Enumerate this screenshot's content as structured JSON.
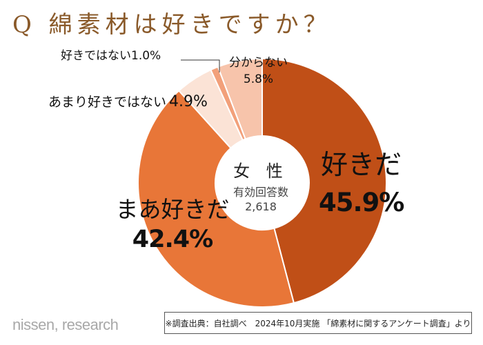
{
  "title": "Q 綿素材は好きですか？",
  "chart_data": {
    "type": "pie",
    "categories": [
      "好きだ",
      "まあ好きだ",
      "あまり好きではない",
      "好きではない",
      "分からない"
    ],
    "values": [
      45.9,
      42.4,
      4.9,
      1.0,
      5.8
    ],
    "value_labels": [
      "45.9%",
      "42.4%",
      "4.9%",
      "1.0%",
      "5.8%"
    ],
    "colors": [
      "#c04f17",
      "#e87638",
      "#fbe3d6",
      "#f2a07a",
      "#f7c4ab"
    ],
    "center_title": "女 性",
    "center_subtitle": "有効回答数",
    "center_value": "2,618",
    "donut": true
  },
  "footer": {
    "logo": "nissen, research",
    "source": "※調査出典：自社調べ　2024年10月実施 「綿素材に関するアンケート調査」より"
  }
}
